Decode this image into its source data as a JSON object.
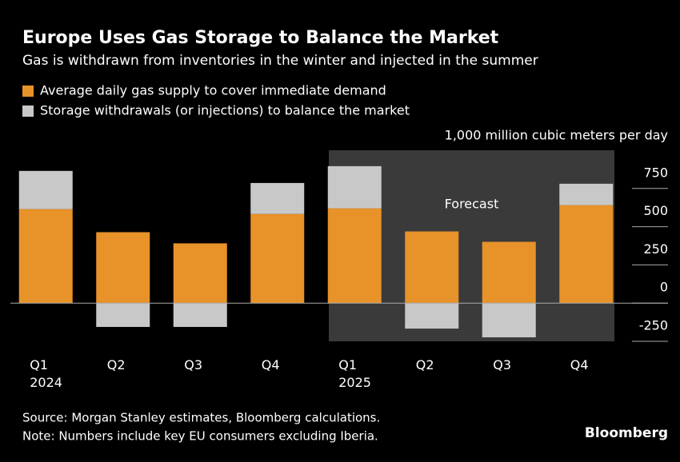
{
  "chart_data": {
    "type": "stacked_bar",
    "title": "Europe Uses Gas Storage to Balance the Market",
    "subtitle": "Gas is withdrawn from inventories in the winter and injected in the summer",
    "y_label": "1,000 million cubic meters per day",
    "annotation": "Forecast",
    "forecast_start": 4,
    "categories": [
      "Q1 2024",
      "Q2",
      "Q3",
      "Q4",
      "Q1 2025",
      "Q2",
      "Q3",
      "Q4"
    ],
    "series": [
      {
        "name": "Average daily gas supply to cover immediate demand",
        "color": "#e8922a",
        "values": [
          615,
          464,
          391,
          583,
          620,
          469,
          401,
          641
        ]
      },
      {
        "name": "Storage withdrawals (or injections) to balance the market",
        "color": "#c8c8c8",
        "values": [
          250,
          -156,
          -156,
          203,
          276,
          -167,
          -224,
          140
        ]
      }
    ],
    "ylim": [
      -250,
      1000
    ],
    "yticks": [
      -250,
      0,
      250,
      500,
      750
    ],
    "source": "Source: Morgan Stanley estimates, Bloomberg calculations.",
    "note": "Note: Numbers include key EU consumers excluding Iberia.",
    "brand": "Bloomberg"
  }
}
